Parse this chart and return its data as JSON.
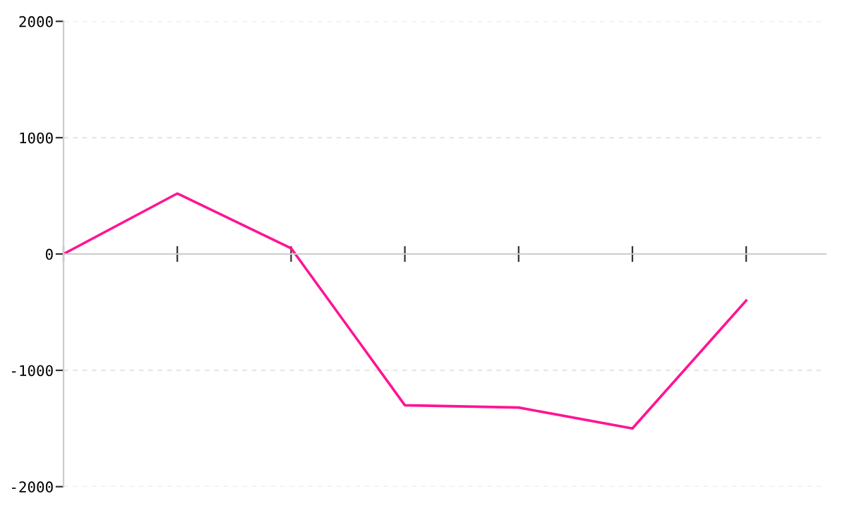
{
  "chart_data": {
    "type": "line",
    "categories": [
      null,
      null,
      null,
      null,
      null,
      null,
      null
    ],
    "series": [
      {
        "color": "#ff1493",
        "values": [
          0,
          520,
          50,
          -1300,
          -1320,
          -1500,
          -400
        ]
      }
    ],
    "ylim": [
      -2000,
      2000
    ],
    "yticks": [
      -2000,
      -1000,
      0,
      1000,
      2000
    ],
    "grid": "y",
    "marker": "none",
    "line_style": "solid"
  }
}
